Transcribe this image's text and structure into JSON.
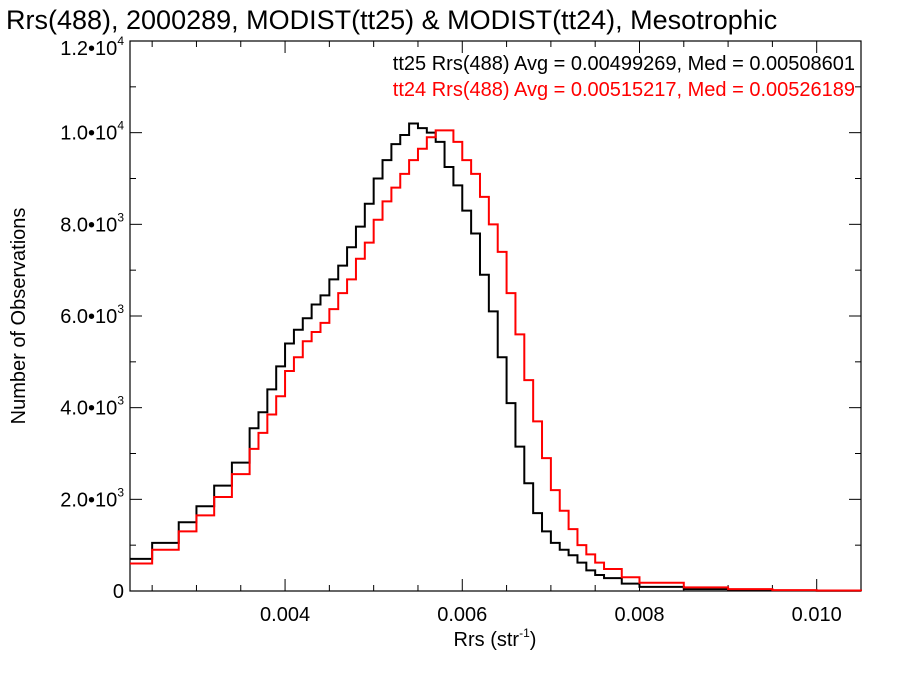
{
  "chart_data": {
    "type": "line",
    "title": "Rrs(488), 2000289, MODIST(tt25) & MODIST(tt24), Mesotrophic",
    "xlabel": "Rrs (str",
    "xlabel_sup": "-1",
    "xlabel_close": ")",
    "ylabel": "Number of Observations",
    "xlim": [
      0.00225,
      0.0105
    ],
    "ylim": [
      0,
      12000
    ],
    "x_ticks": [
      {
        "value": 0.004,
        "label": "0.004"
      },
      {
        "value": 0.006,
        "label": "0.006"
      },
      {
        "value": 0.008,
        "label": "0.008"
      },
      {
        "value": 0.01,
        "label": "0.010"
      }
    ],
    "y_ticks": [
      {
        "value": 0,
        "mantissa": "0",
        "exp": ""
      },
      {
        "value": 2000,
        "mantissa": "2.0•10",
        "exp": "3"
      },
      {
        "value": 4000,
        "mantissa": "4.0•10",
        "exp": "3"
      },
      {
        "value": 6000,
        "mantissa": "6.0•10",
        "exp": "3"
      },
      {
        "value": 8000,
        "mantissa": "8.0•10",
        "exp": "3"
      },
      {
        "value": 10000,
        "mantissa": "1.0•10",
        "exp": "4"
      },
      {
        "value": 12000,
        "mantissa": "1.2•10",
        "exp": "4"
      }
    ],
    "grid": false,
    "legend_position": "top-right",
    "series": [
      {
        "legend": "tt25 Rrs(488) Avg = 0.00499269, Med = 0.00508601",
        "color": "#000000",
        "step": true,
        "x": [
          0.00225,
          0.0025,
          0.0028,
          0.003,
          0.0032,
          0.0034,
          0.0036,
          0.0037,
          0.0038,
          0.0039,
          0.004,
          0.0041,
          0.0042,
          0.0043,
          0.0044,
          0.0045,
          0.0046,
          0.0047,
          0.0048,
          0.0049,
          0.005,
          0.0051,
          0.0052,
          0.0053,
          0.0054,
          0.0055,
          0.0056,
          0.0057,
          0.0058,
          0.0059,
          0.006,
          0.0061,
          0.0062,
          0.0063,
          0.0064,
          0.0065,
          0.0066,
          0.0067,
          0.0068,
          0.0069,
          0.007,
          0.0071,
          0.0072,
          0.0073,
          0.0074,
          0.0075,
          0.0076,
          0.0078,
          0.008,
          0.0085,
          0.009,
          0.0095,
          0.01,
          0.0105
        ],
        "y": [
          700,
          1050,
          1500,
          1850,
          2300,
          2800,
          3550,
          3900,
          4400,
          4900,
          5400,
          5700,
          5950,
          6250,
          6450,
          6800,
          7100,
          7500,
          7950,
          8450,
          9000,
          9400,
          9750,
          9950,
          10200,
          10100,
          10000,
          9800,
          9250,
          8850,
          8300,
          7800,
          6900,
          6100,
          5100,
          4100,
          3150,
          2350,
          1700,
          1300,
          1050,
          900,
          780,
          620,
          450,
          350,
          280,
          160,
          90,
          40,
          20,
          10,
          5,
          0
        ]
      },
      {
        "legend": "tt24 Rrs(488) Avg = 0.00515217, Med = 0.00526189",
        "color": "#ff0000",
        "step": true,
        "x": [
          0.00225,
          0.0025,
          0.0028,
          0.003,
          0.0032,
          0.0034,
          0.0036,
          0.0037,
          0.0038,
          0.0039,
          0.004,
          0.0041,
          0.0042,
          0.0043,
          0.0044,
          0.0045,
          0.0046,
          0.0047,
          0.0048,
          0.0049,
          0.005,
          0.0051,
          0.0052,
          0.0053,
          0.0054,
          0.0055,
          0.0056,
          0.0057,
          0.0058,
          0.0059,
          0.006,
          0.0061,
          0.0062,
          0.0063,
          0.0064,
          0.0065,
          0.0066,
          0.0067,
          0.0068,
          0.0069,
          0.007,
          0.0071,
          0.0072,
          0.0073,
          0.0074,
          0.0075,
          0.0076,
          0.0078,
          0.008,
          0.0085,
          0.009,
          0.0095,
          0.01,
          0.0105
        ],
        "y": [
          600,
          900,
          1300,
          1650,
          2050,
          2550,
          3100,
          3450,
          3850,
          4250,
          4800,
          5100,
          5450,
          5650,
          5850,
          6150,
          6500,
          6800,
          7250,
          7600,
          8100,
          8500,
          8800,
          9100,
          9400,
          9650,
          9900,
          10050,
          10050,
          9800,
          9400,
          9100,
          8600,
          8000,
          7400,
          6500,
          5600,
          4600,
          3700,
          2900,
          2200,
          1750,
          1350,
          1000,
          800,
          620,
          480,
          300,
          180,
          80,
          40,
          20,
          10,
          0
        ]
      }
    ]
  }
}
